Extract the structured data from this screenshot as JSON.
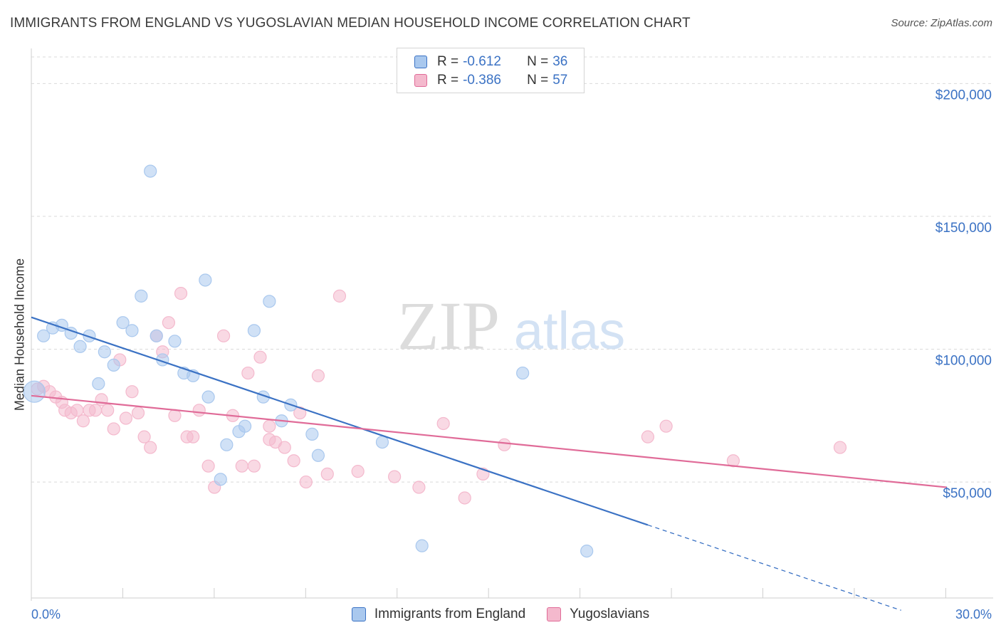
{
  "title": "IMMIGRANTS FROM ENGLAND VS YUGOSLAVIAN MEDIAN HOUSEHOLD INCOME CORRELATION CHART",
  "source": "Source: ZipAtlas.com",
  "watermark": {
    "zip": "ZIP",
    "atlas": "atlas"
  },
  "colors": {
    "blue": "#3b72c4",
    "blue_fill": "#a9c8ee",
    "pink": "#e06b98",
    "pink_fill": "#f4b9cd",
    "grid": "#d9d9d9",
    "axis_text": "#3b72c4"
  },
  "stats": [
    {
      "r_label": "R = ",
      "r_value": "-0.612",
      "n_label": "N = ",
      "n_value": "36"
    },
    {
      "r_label": "R = ",
      "r_value": "-0.386",
      "n_label": "N = ",
      "n_value": "57"
    }
  ],
  "chart_data": {
    "type": "scatter",
    "ylabel": "Median Household Income",
    "xlim": [
      0,
      30
    ],
    "ylim": [
      5000,
      210000
    ],
    "x_tick_labels": {
      "left": "0.0%",
      "right": "30.0%"
    },
    "y_ticks": [
      {
        "value": 50000,
        "label": "$50,000"
      },
      {
        "value": 100000,
        "label": "$100,000"
      },
      {
        "value": 150000,
        "label": "$150,000"
      },
      {
        "value": 200000,
        "label": "$200,000"
      }
    ],
    "legend_position": "bottom",
    "series": [
      {
        "name": "Immigrants from England",
        "color": "#3b72c4",
        "fill": "#a9c8ee",
        "trend": {
          "x0": 0,
          "y0": 112000,
          "x_solid_end": 20.2,
          "x_end": 28.5,
          "slope": -3870
        },
        "points": [
          [
            0.1,
            84000
          ],
          [
            0.4,
            105000
          ],
          [
            0.7,
            108000
          ],
          [
            1.0,
            109000
          ],
          [
            1.3,
            106000
          ],
          [
            1.6,
            101000
          ],
          [
            1.9,
            105000
          ],
          [
            2.2,
            87000
          ],
          [
            2.4,
            99000
          ],
          [
            2.7,
            94000
          ],
          [
            3.0,
            110000
          ],
          [
            3.3,
            107000
          ],
          [
            3.6,
            120000
          ],
          [
            3.9,
            167000
          ],
          [
            4.1,
            105000
          ],
          [
            4.3,
            96000
          ],
          [
            4.7,
            103000
          ],
          [
            5.0,
            91000
          ],
          [
            5.3,
            90000
          ],
          [
            5.7,
            126000
          ],
          [
            5.8,
            82000
          ],
          [
            6.2,
            51000
          ],
          [
            6.4,
            64000
          ],
          [
            6.8,
            69000
          ],
          [
            7.0,
            71000
          ],
          [
            7.3,
            107000
          ],
          [
            7.6,
            82000
          ],
          [
            7.8,
            118000
          ],
          [
            8.2,
            73000
          ],
          [
            8.5,
            79000
          ],
          [
            9.2,
            68000
          ],
          [
            9.4,
            60000
          ],
          [
            11.5,
            65000
          ],
          [
            12.8,
            26000
          ],
          [
            16.1,
            91000
          ],
          [
            18.2,
            24000
          ]
        ]
      },
      {
        "name": "Yugoslavians",
        "color": "#e06b98",
        "fill": "#f4b9cd",
        "trend": {
          "x0": 0,
          "y0": 82500,
          "x_end": 30,
          "slope": -1150
        },
        "points": [
          [
            0.2,
            85000
          ],
          [
            0.4,
            86000
          ],
          [
            0.6,
            84000
          ],
          [
            0.8,
            82000
          ],
          [
            1.0,
            80000
          ],
          [
            1.1,
            77000
          ],
          [
            1.3,
            76000
          ],
          [
            1.5,
            77000
          ],
          [
            1.7,
            73000
          ],
          [
            1.9,
            77000
          ],
          [
            2.1,
            77000
          ],
          [
            2.3,
            81000
          ],
          [
            2.5,
            77000
          ],
          [
            2.7,
            70000
          ],
          [
            2.9,
            96000
          ],
          [
            3.1,
            74000
          ],
          [
            3.3,
            84000
          ],
          [
            3.5,
            76000
          ],
          [
            3.7,
            67000
          ],
          [
            3.9,
            63000
          ],
          [
            4.1,
            105000
          ],
          [
            4.3,
            99000
          ],
          [
            4.5,
            110000
          ],
          [
            4.7,
            75000
          ],
          [
            4.9,
            121000
          ],
          [
            5.1,
            67000
          ],
          [
            5.3,
            67000
          ],
          [
            5.5,
            77000
          ],
          [
            5.8,
            56000
          ],
          [
            6.0,
            48000
          ],
          [
            6.3,
            105000
          ],
          [
            6.6,
            75000
          ],
          [
            6.9,
            56000
          ],
          [
            7.1,
            91000
          ],
          [
            7.3,
            56000
          ],
          [
            7.5,
            97000
          ],
          [
            7.8,
            71000
          ],
          [
            8.0,
            65000
          ],
          [
            8.3,
            63000
          ],
          [
            8.6,
            58000
          ],
          [
            8.8,
            76000
          ],
          [
            9.0,
            50000
          ],
          [
            9.4,
            90000
          ],
          [
            9.7,
            53000
          ],
          [
            10.1,
            120000
          ],
          [
            10.7,
            54000
          ],
          [
            11.9,
            52000
          ],
          [
            12.7,
            48000
          ],
          [
            13.5,
            72000
          ],
          [
            14.2,
            44000
          ],
          [
            14.8,
            53000
          ],
          [
            15.5,
            64000
          ],
          [
            20.2,
            67000
          ],
          [
            20.8,
            71000
          ],
          [
            23.0,
            58000
          ],
          [
            26.5,
            63000
          ],
          [
            7.8,
            66000
          ]
        ]
      }
    ]
  }
}
